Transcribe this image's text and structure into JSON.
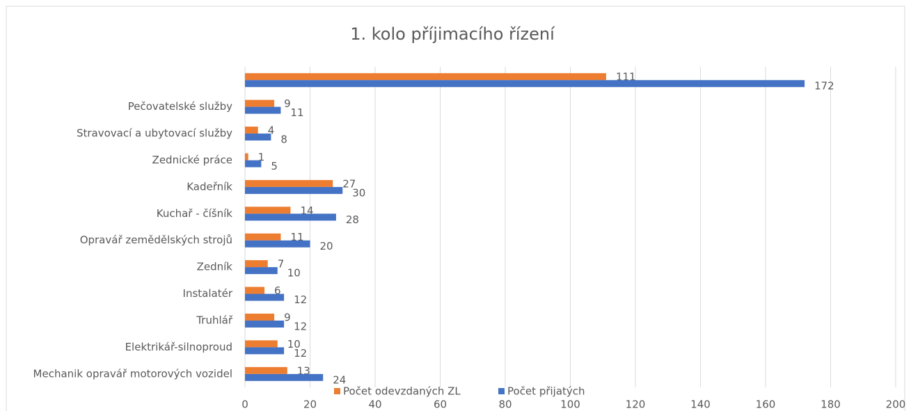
{
  "chart_data": {
    "type": "barh",
    "title": "1. kolo příjimacího řízení",
    "categories": [
      null,
      "Pečovatelské služby",
      "Stravovací a ubytovací služby",
      "Zednické práce",
      "Kadeřník",
      "Kuchař - číšník",
      "Opravář zemědělských strojů",
      "Zedník",
      "Instalatér",
      "Truhlář",
      "Elektrikář-silnoproud",
      "Mechanik opravář motorových vozidel"
    ],
    "series": [
      {
        "name": "Počet odevzdaných ZL",
        "color": "#ed7d31",
        "values": [
          111,
          9,
          4,
          1,
          27,
          14,
          11,
          7,
          6,
          9,
          10,
          13
        ]
      },
      {
        "name": "Počet přijatých",
        "color": "#4472c4",
        "values": [
          172,
          11,
          8,
          5,
          30,
          28,
          20,
          10,
          12,
          12,
          12,
          24
        ]
      }
    ],
    "xlim": [
      0,
      200
    ],
    "xticks": [
      0,
      20,
      40,
      60,
      80,
      100,
      120,
      140,
      160,
      180,
      200
    ],
    "grid": true,
    "legend": "bottom"
  }
}
